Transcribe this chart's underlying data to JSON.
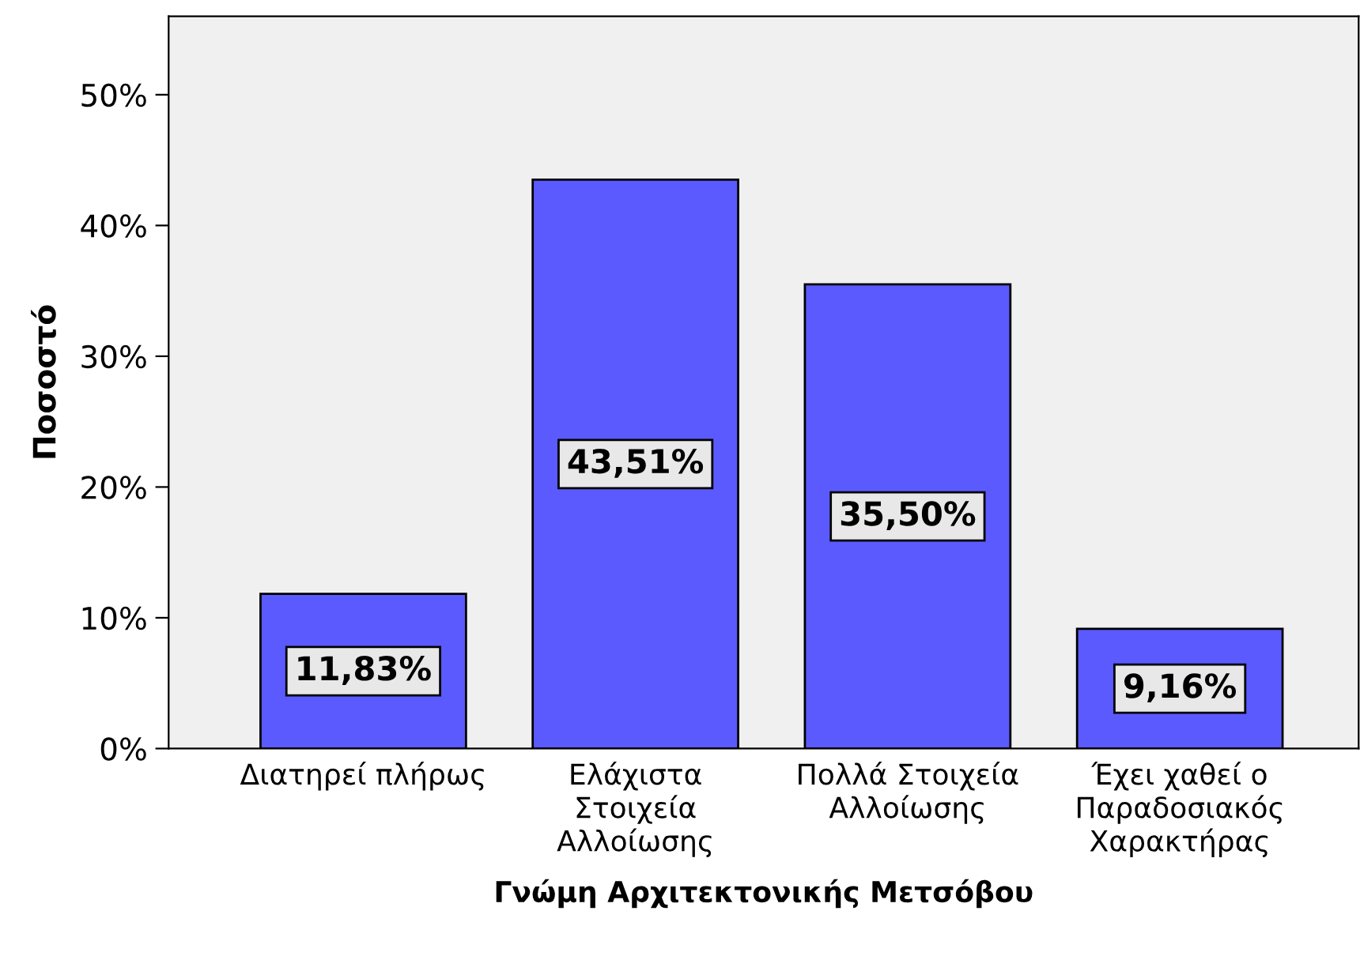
{
  "chart_data": {
    "type": "bar",
    "xlabel": "Γνώμη Αρχιτεκτονικής Μετσόβου",
    "ylabel": "Ποσοστό",
    "categories": [
      "Διατηρεί πλήρως",
      "Ελάχιστα\nΣτοιχεία\nΑλλοίωσης",
      "Πολλά Στοιχεία\nΑλλοίωσης",
      "Έχει χαθεί ο\nΠαραδοσιακός\nΧαρακτήρας"
    ],
    "values": [
      11.83,
      43.51,
      35.5,
      9.16
    ],
    "value_labels": [
      "11,83%",
      "43,51%",
      "35,50%",
      "9,16%"
    ],
    "color": "#5a5aff",
    "ylim": [
      0,
      56
    ],
    "yticks": [
      {
        "value": 0,
        "label": "0%"
      },
      {
        "value": 10,
        "label": "10%"
      },
      {
        "value": 20,
        "label": "20%"
      },
      {
        "value": 30,
        "label": "30%"
      },
      {
        "value": 40,
        "label": "40%"
      },
      {
        "value": 50,
        "label": "50%"
      }
    ],
    "grid": false,
    "legend": false
  }
}
